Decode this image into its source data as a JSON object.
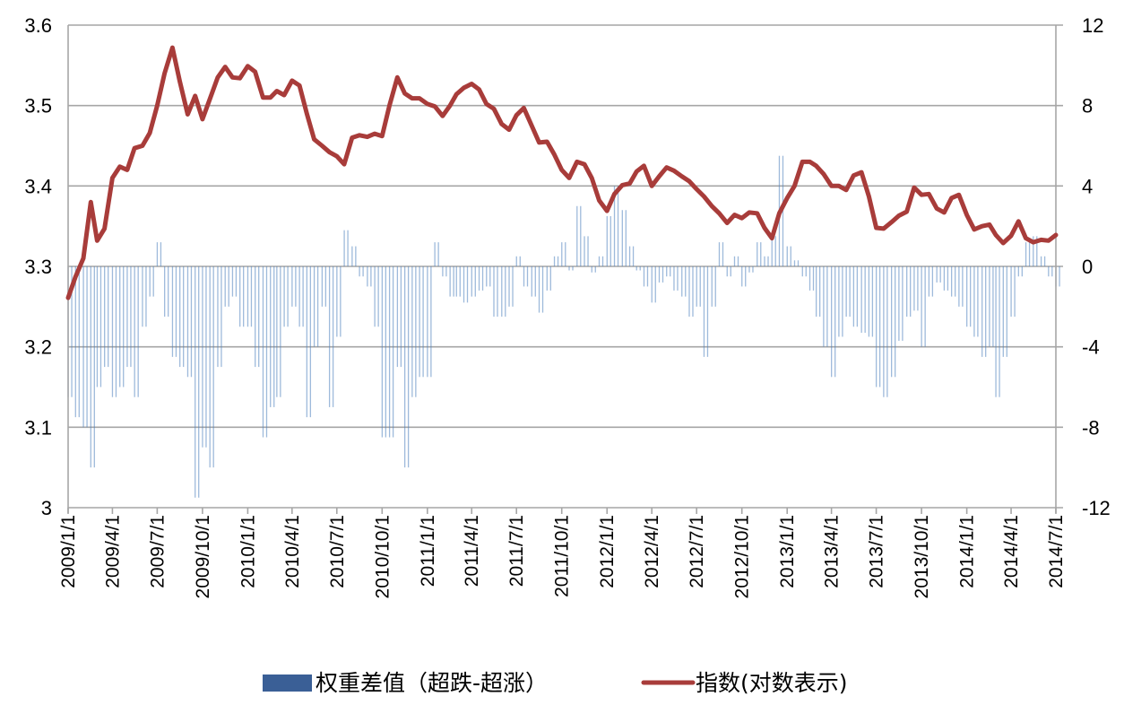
{
  "chart_data": {
    "type": "bar+line",
    "title": "",
    "colors": {
      "bars": "#4f81bd",
      "bar_legend": "#3a5f96",
      "line": "#a83c3a",
      "grid": "#a6a6a6"
    },
    "grid": true,
    "legend_placement": "bottom",
    "left_axis": {
      "ylim": [
        3,
        3.6
      ],
      "ticks": [
        "3",
        "3.1",
        "3.2",
        "3.3",
        "3.4",
        "3.5",
        "3.6"
      ],
      "values": [
        3,
        3.1,
        3.2,
        3.3,
        3.4,
        3.5,
        3.6
      ]
    },
    "right_axis": {
      "ylim": [
        -12,
        12
      ],
      "ticks": [
        "-12",
        "-8",
        "-4",
        "0",
        "4",
        "8",
        "12"
      ],
      "values": [
        -12,
        -8,
        -4,
        0,
        4,
        8,
        12
      ]
    },
    "x_axis": {
      "range": [
        "2009-01-01",
        "2014-07-01"
      ],
      "tick_dates": [
        "2009-01-01",
        "2009-04-01",
        "2009-07-01",
        "2009-10-01",
        "2010-01-01",
        "2010-04-01",
        "2010-07-01",
        "2010-10-01",
        "2011-01-01",
        "2011-04-01",
        "2011-07-01",
        "2011-10-01",
        "2012-01-01",
        "2012-04-01",
        "2012-07-01",
        "2012-10-01",
        "2013-01-01",
        "2013-04-01",
        "2013-07-01",
        "2013-10-01",
        "2014-01-01",
        "2014-04-01",
        "2014-07-01"
      ],
      "tick_labels": [
        "2009/1/1",
        "2009/4/1",
        "2009/7/1",
        "2009/10/1",
        "2010/1/1",
        "2010/4/1",
        "2010/7/1",
        "2010/10/1",
        "2011/1/1",
        "2011/4/1",
        "2011/7/1",
        "2011/10/1",
        "2012/1/1",
        "2012/4/1",
        "2012/7/1",
        "2012/10/1",
        "2013/1/1",
        "2013/4/1",
        "2013/7/1",
        "2013/10/1",
        "2014/1/1",
        "2014/4/1",
        "2014/7/1"
      ]
    },
    "dates": [
      "2009-01-01",
      "2009-01-16",
      "2009-02-01",
      "2009-02-16",
      "2009-03-01",
      "2009-03-16",
      "2009-04-01",
      "2009-04-16",
      "2009-05-01",
      "2009-05-16",
      "2009-06-01",
      "2009-06-16",
      "2009-07-01",
      "2009-07-16",
      "2009-08-01",
      "2009-08-16",
      "2009-09-01",
      "2009-09-16",
      "2009-10-01",
      "2009-10-16",
      "2009-11-01",
      "2009-11-16",
      "2009-12-01",
      "2009-12-16",
      "2010-01-01",
      "2010-01-16",
      "2010-02-01",
      "2010-02-16",
      "2010-03-01",
      "2010-03-16",
      "2010-04-01",
      "2010-04-16",
      "2010-05-01",
      "2010-05-16",
      "2010-06-01",
      "2010-06-16",
      "2010-07-01",
      "2010-07-16",
      "2010-08-01",
      "2010-08-16",
      "2010-09-01",
      "2010-09-16",
      "2010-10-01",
      "2010-10-16",
      "2010-11-01",
      "2010-11-16",
      "2010-12-01",
      "2010-12-16",
      "2011-01-01",
      "2011-01-16",
      "2011-02-01",
      "2011-02-16",
      "2011-03-01",
      "2011-03-16",
      "2011-04-01",
      "2011-04-16",
      "2011-05-01",
      "2011-05-16",
      "2011-06-01",
      "2011-06-16",
      "2011-07-01",
      "2011-07-16",
      "2011-08-01",
      "2011-08-16",
      "2011-09-01",
      "2011-09-16",
      "2011-10-01",
      "2011-10-16",
      "2011-11-01",
      "2011-11-16",
      "2011-12-01",
      "2011-12-16",
      "2012-01-01",
      "2012-01-16",
      "2012-02-01",
      "2012-02-16",
      "2012-03-01",
      "2012-03-16",
      "2012-04-01",
      "2012-04-16",
      "2012-05-01",
      "2012-05-16",
      "2012-06-01",
      "2012-06-16",
      "2012-07-01",
      "2012-07-16",
      "2012-08-01",
      "2012-08-16",
      "2012-09-01",
      "2012-09-16",
      "2012-10-01",
      "2012-10-16",
      "2012-11-01",
      "2012-11-16",
      "2012-12-01",
      "2012-12-16",
      "2013-01-01",
      "2013-01-16",
      "2013-02-01",
      "2013-02-16",
      "2013-03-01",
      "2013-03-16",
      "2013-04-01",
      "2013-04-16",
      "2013-05-01",
      "2013-05-16",
      "2013-06-01",
      "2013-06-16",
      "2013-07-01",
      "2013-07-16",
      "2013-08-01",
      "2013-08-16",
      "2013-09-01",
      "2013-09-16",
      "2013-10-01",
      "2013-10-16",
      "2013-11-01",
      "2013-11-16",
      "2013-12-01",
      "2013-12-16",
      "2014-01-01",
      "2014-01-16",
      "2014-02-01",
      "2014-02-16",
      "2014-03-01",
      "2014-03-16",
      "2014-04-01",
      "2014-04-16",
      "2014-05-01",
      "2014-05-16",
      "2014-06-01",
      "2014-06-16",
      "2014-07-01"
    ],
    "series": [
      {
        "name": "权重差值（超跌-超涨）",
        "type": "bar",
        "axis": "right",
        "values": [
          -6.5,
          -7.5,
          -8,
          -10,
          -6,
          -5,
          -6.5,
          -6,
          -5,
          -6.5,
          -3,
          -1.5,
          1.2,
          -2.5,
          -4.5,
          -5,
          -5.5,
          -11.5,
          -9,
          -10,
          -5,
          -2,
          -1.5,
          -3,
          -3,
          -5,
          -8.5,
          -7,
          -6.5,
          -3,
          -2,
          -3,
          -7.5,
          -4,
          -2,
          -7,
          -3.5,
          1.8,
          1,
          -0.5,
          -1,
          -3,
          -8.5,
          -8.5,
          -5,
          -10,
          -6.5,
          -5.5,
          -5.5,
          1.2,
          -0.5,
          -1.5,
          -1.5,
          -1.8,
          -1.5,
          -1.2,
          -1,
          -2.5,
          -2.5,
          -2,
          0.5,
          -1,
          -1.5,
          -2.3,
          -1.2,
          0.5,
          1.2,
          -0.2,
          3,
          1.5,
          -0.3,
          0.5,
          2.5,
          4,
          2.8,
          1,
          -0.2,
          -1,
          -1.8,
          -0.8,
          -0.5,
          -1.2,
          -1.5,
          -2.5,
          -2,
          -4.5,
          -2,
          1.2,
          -0.5,
          0.5,
          -1,
          -0.3,
          1.2,
          0.5,
          1.5,
          5.5,
          1,
          0.3,
          -0.5,
          -1.2,
          -2.5,
          -4,
          -5.5,
          -3.5,
          -2.5,
          -3,
          -3.3,
          -3.5,
          -6,
          -6.5,
          -5.5,
          -3.7,
          -2.5,
          -2.2,
          -4,
          -1.5,
          -0.8,
          -1.2,
          -1.5,
          -2,
          -3,
          -3.5,
          -4.5,
          -4,
          -6.5,
          -4.5,
          -2.5,
          -0.5,
          1.2,
          1.5,
          0.5,
          -0.5,
          -1
        ]
      },
      {
        "name": "指数(对数表示)",
        "type": "line",
        "axis": "left",
        "values": [
          3.261,
          3.287,
          3.31,
          3.38,
          3.332,
          3.347,
          3.41,
          3.424,
          3.42,
          3.447,
          3.45,
          3.466,
          3.5,
          3.54,
          3.572,
          3.53,
          3.489,
          3.512,
          3.483,
          3.508,
          3.535,
          3.548,
          3.535,
          3.534,
          3.549,
          3.542,
          3.51,
          3.51,
          3.518,
          3.513,
          3.531,
          3.525,
          3.49,
          3.458,
          3.45,
          3.442,
          3.437,
          3.427,
          3.46,
          3.463,
          3.461,
          3.465,
          3.462,
          3.5,
          3.535,
          3.515,
          3.509,
          3.509,
          3.502,
          3.499,
          3.487,
          3.5,
          3.514,
          3.522,
          3.527,
          3.52,
          3.502,
          3.496,
          3.477,
          3.47,
          3.488,
          3.497,
          3.475,
          3.454,
          3.455,
          3.439,
          3.42,
          3.41,
          3.43,
          3.427,
          3.41,
          3.382,
          3.369,
          3.39,
          3.401,
          3.403,
          3.418,
          3.425,
          3.4,
          3.412,
          3.423,
          3.419,
          3.412,
          3.406,
          3.396,
          3.387,
          3.375,
          3.366,
          3.354,
          3.364,
          3.36,
          3.367,
          3.366,
          3.348,
          3.335,
          3.366,
          3.385,
          3.4,
          3.43,
          3.43,
          3.425,
          3.415,
          3.4,
          3.4,
          3.395,
          3.413,
          3.417,
          3.387,
          3.348,
          3.347,
          3.355,
          3.363,
          3.368,
          3.398,
          3.389,
          3.39,
          3.372,
          3.367,
          3.385,
          3.389,
          3.364,
          3.346,
          3.35,
          3.352,
          3.339,
          3.329,
          3.338,
          3.356,
          3.335,
          3.33,
          3.333,
          3.332,
          3.339
        ]
      }
    ]
  },
  "legend": {
    "bar_label": "权重差值（超跌-超涨）",
    "line_label": "指数(对数表示)"
  }
}
